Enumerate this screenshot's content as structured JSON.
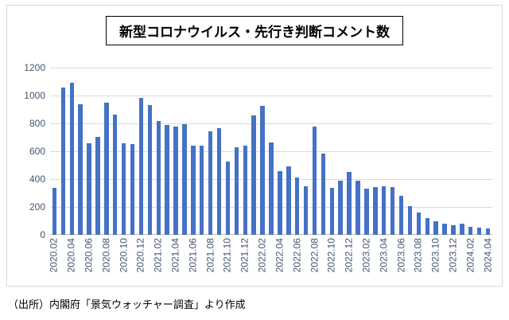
{
  "chart_data": {
    "type": "bar",
    "title": "新型コロナウイルス・先行き判断コメント数",
    "bar_color": "#4472C4",
    "grid_color": "#d9d9d9",
    "axis_color": "#bfbfbf",
    "tick_label_color": "#44546A",
    "ylim": [
      0,
      1200
    ],
    "y_tick_step": 200,
    "grid": "horizontal",
    "legend": "none",
    "x_tick_every": 2,
    "x": [
      "2020.02",
      "2020.03",
      "2020.04",
      "2020.05",
      "2020.06",
      "2020.07",
      "2020.08",
      "2020.09",
      "2020.10",
      "2020.11",
      "2020.12",
      "2021.01",
      "2021.02",
      "2021.03",
      "2021.04",
      "2021.05",
      "2021.06",
      "2021.07",
      "2021.08",
      "2021.09",
      "2021.10",
      "2021.11",
      "2021.12",
      "2022.01",
      "2022.02",
      "2022.03",
      "2022.04",
      "2022.05",
      "2022.06",
      "2022.07",
      "2022.08",
      "2022.09",
      "2022.10",
      "2022.11",
      "2022.12",
      "2023.01",
      "2023.02",
      "2023.03",
      "2023.04",
      "2023.05",
      "2023.06",
      "2023.07",
      "2023.08",
      "2023.09",
      "2023.10",
      "2023.11",
      "2023.12",
      "2024.01",
      "2024.02",
      "2024.03",
      "2024.04"
    ],
    "values": [
      340,
      1060,
      1090,
      940,
      660,
      705,
      950,
      865,
      660,
      650,
      985,
      930,
      820,
      790,
      780,
      795,
      640,
      640,
      745,
      765,
      525,
      630,
      640,
      855,
      925,
      665,
      460,
      490,
      410,
      350,
      780,
      585,
      335,
      390,
      450,
      390,
      330,
      345,
      350,
      345,
      280,
      205,
      160,
      120,
      95,
      80,
      70,
      80,
      60,
      50,
      45
    ]
  },
  "source_note": "（出所）内閣府「景気ウォッチャー調査」より作成"
}
